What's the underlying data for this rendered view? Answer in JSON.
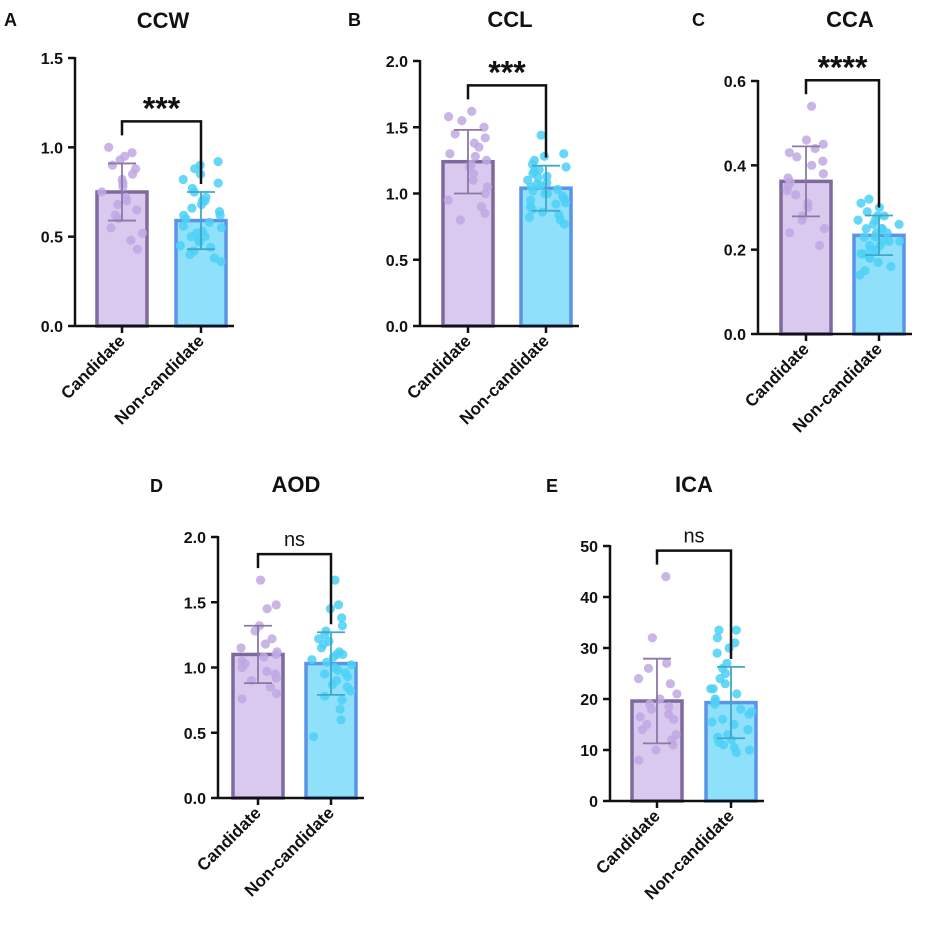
{
  "chart_data": [
    {
      "type": "bar",
      "panel": "A",
      "title": "CCW",
      "categories": [
        "Candidate",
        "Non-candidate"
      ],
      "values": [
        0.75,
        0.59
      ],
      "sd": [
        0.16,
        0.16
      ],
      "ylim": [
        0,
        1.5
      ],
      "yticks": [
        "0.0",
        "0.5",
        "1.0",
        "1.5"
      ],
      "significance": "***",
      "points": [
        [
          1.0,
          0.97,
          0.95,
          0.93,
          0.9,
          0.88,
          0.85,
          0.82,
          0.8,
          0.78,
          0.75,
          0.72,
          0.7,
          0.68,
          0.65,
          0.62,
          0.6,
          0.55,
          0.52,
          0.48,
          0.43
        ],
        [
          0.92,
          0.9,
          0.88,
          0.85,
          0.82,
          0.8,
          0.77,
          0.75,
          0.72,
          0.7,
          0.68,
          0.66,
          0.64,
          0.62,
          0.6,
          0.58,
          0.56,
          0.55,
          0.53,
          0.52,
          0.5,
          0.48,
          0.47,
          0.45,
          0.44,
          0.42,
          0.4,
          0.38,
          0.36,
          0.5,
          0.62,
          0.7
        ]
      ]
    },
    {
      "type": "bar",
      "panel": "B",
      "title": "CCL",
      "categories": [
        "Candidate",
        "Non-candidate"
      ],
      "values": [
        1.24,
        1.04
      ],
      "sd": [
        0.24,
        0.17
      ],
      "ylim": [
        0,
        2.0
      ],
      "yticks": [
        "0.0",
        "0.5",
        "1.0",
        "1.5",
        "2.0"
      ],
      "significance": "***",
      "points": [
        [
          1.62,
          1.58,
          1.55,
          1.5,
          1.45,
          1.42,
          1.38,
          1.35,
          1.3,
          1.28,
          1.25,
          1.22,
          1.2,
          1.15,
          1.1,
          1.05,
          1.0,
          0.95,
          0.9,
          0.85,
          0.8
        ],
        [
          1.44,
          1.3,
          1.28,
          1.25,
          1.22,
          1.2,
          1.18,
          1.15,
          1.13,
          1.1,
          1.08,
          1.06,
          1.05,
          1.03,
          1.02,
          1.0,
          0.98,
          0.96,
          0.95,
          0.93,
          0.92,
          0.9,
          0.88,
          0.86,
          0.84,
          0.82,
          0.8,
          0.77,
          1.12,
          1.0,
          1.17,
          1.07
        ]
      ]
    },
    {
      "type": "bar",
      "panel": "C",
      "title": "CCA",
      "categories": [
        "Candidate",
        "Non-candidate"
      ],
      "values": [
        0.362,
        0.234
      ],
      "sd": [
        0.083,
        0.047
      ],
      "ylim": [
        0,
        0.6
      ],
      "yticks": [
        "0.0",
        "0.2",
        "0.4",
        "0.6"
      ],
      "significance": "****",
      "points": [
        [
          0.54,
          0.46,
          0.45,
          0.44,
          0.43,
          0.42,
          0.41,
          0.4,
          0.38,
          0.37,
          0.36,
          0.35,
          0.34,
          0.33,
          0.31,
          0.3,
          0.28,
          0.27,
          0.25,
          0.24,
          0.21
        ],
        [
          0.32,
          0.31,
          0.3,
          0.29,
          0.28,
          0.27,
          0.27,
          0.26,
          0.26,
          0.25,
          0.25,
          0.24,
          0.24,
          0.23,
          0.23,
          0.22,
          0.22,
          0.21,
          0.21,
          0.2,
          0.2,
          0.19,
          0.19,
          0.18,
          0.18,
          0.17,
          0.16,
          0.15,
          0.14,
          0.25,
          0.28,
          0.22
        ]
      ]
    },
    {
      "type": "bar",
      "panel": "D",
      "title": "AOD",
      "categories": [
        "Candidate",
        "Non-candidate"
      ],
      "values": [
        1.1,
        1.03
      ],
      "sd": [
        0.22,
        0.24
      ],
      "ylim": [
        0,
        2.0
      ],
      "yticks": [
        "0.0",
        "0.5",
        "1.0",
        "1.5",
        "2.0"
      ],
      "significance": "ns",
      "points": [
        [
          1.67,
          1.48,
          1.45,
          1.32,
          1.28,
          1.22,
          1.18,
          1.15,
          1.12,
          1.1,
          1.08,
          1.05,
          1.03,
          1.0,
          0.97,
          0.95,
          0.92,
          0.9,
          0.85,
          0.8,
          0.76
        ],
        [
          1.67,
          1.48,
          1.45,
          1.38,
          1.32,
          1.28,
          1.25,
          1.22,
          1.2,
          1.18,
          1.15,
          1.12,
          1.1,
          1.08,
          1.06,
          1.04,
          1.02,
          1.0,
          0.98,
          0.96,
          0.93,
          0.9,
          0.87,
          0.85,
          0.82,
          0.78,
          0.75,
          0.68,
          0.6,
          0.47,
          1.1,
          0.95
        ]
      ]
    },
    {
      "type": "bar",
      "panel": "E",
      "title": "ICA",
      "categories": [
        "Candidate",
        "Non-candidate"
      ],
      "values": [
        19.6,
        19.3
      ],
      "sd": [
        8.3,
        7.0
      ],
      "ylim": [
        0,
        50
      ],
      "yticks": [
        "0",
        "10",
        "20",
        "30",
        "40",
        "50"
      ],
      "significance": "ns",
      "points": [
        [
          44.0,
          32.0,
          27.0,
          26.0,
          24.0,
          23.0,
          21.0,
          20.0,
          19.0,
          18.5,
          18.0,
          17.0,
          16.5,
          16.0,
          15.0,
          14.0,
          13.0,
          12.0,
          11.0,
          10.0,
          8.0
        ],
        [
          33.5,
          33.5,
          32.0,
          31.0,
          30.0,
          29.0,
          27.0,
          26.0,
          25.0,
          24.0,
          23.0,
          22.0,
          21.0,
          20.0,
          19.5,
          19.0,
          18.0,
          17.5,
          17.0,
          16.0,
          15.5,
          15.0,
          14.0,
          13.0,
          12.5,
          12.0,
          11.5,
          11.0,
          10.5,
          10.0,
          9.5,
          22.0
        ]
      ]
    }
  ],
  "colors": {
    "candidate_fill": "#d9c9ee",
    "candidate_edge": "#7e6a9c",
    "candidate_dot": "#bfa8e2",
    "candidate_err": "#8a79a6",
    "noncandidate_fill": "#8fe0fb",
    "noncandidate_edge": "#5b93e8",
    "noncandidate_dot": "#4cd0f6",
    "noncandidate_err": "#3fa7c9",
    "axis": "#111111"
  }
}
